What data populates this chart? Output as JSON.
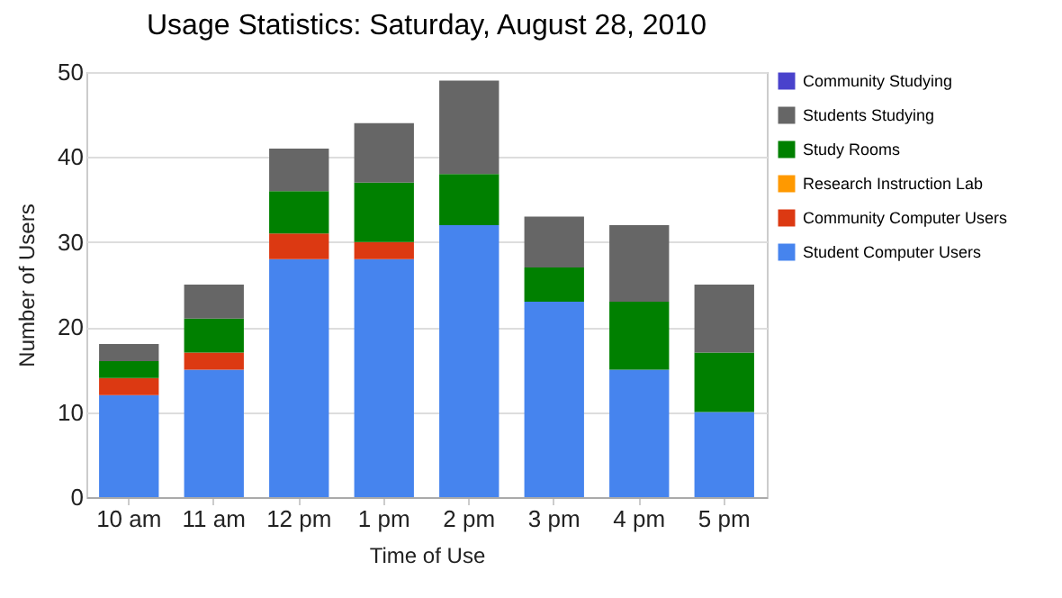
{
  "chart_data": {
    "type": "bar",
    "title": "Usage Statistics: Saturday, August 28, 2010",
    "xlabel": "Time of Use",
    "ylabel": "Number of Users",
    "categories": [
      "10 am",
      "11 am",
      "12 pm",
      "1 pm",
      "2 pm",
      "3 pm",
      "4 pm",
      "5 pm"
    ],
    "stacked": true,
    "series": [
      {
        "name": "Student Computer Users",
        "color": "#4684ee",
        "values": [
          12,
          15,
          28,
          28,
          32,
          23,
          15,
          10
        ]
      },
      {
        "name": "Community Computer Users",
        "color": "#dc3912",
        "values": [
          2,
          2,
          3,
          2,
          0,
          0,
          0,
          0
        ]
      },
      {
        "name": "Research Instruction Lab",
        "color": "#ff9900",
        "values": [
          0,
          0,
          0,
          0,
          0,
          0,
          0,
          0
        ]
      },
      {
        "name": "Study Rooms",
        "color": "#008000",
        "values": [
          2,
          4,
          5,
          7,
          6,
          4,
          8,
          7
        ]
      },
      {
        "name": "Students Studying",
        "color": "#666666",
        "values": [
          2,
          4,
          5,
          7,
          11,
          6,
          9,
          8
        ]
      },
      {
        "name": "Community Studying",
        "color": "#4942cc",
        "values": [
          0,
          0,
          0,
          0,
          0,
          0,
          0,
          0
        ]
      }
    ],
    "ylim": [
      0,
      50
    ],
    "yticks": [
      0,
      10,
      20,
      30,
      40,
      50
    ],
    "grid": "y",
    "legend": "right"
  }
}
